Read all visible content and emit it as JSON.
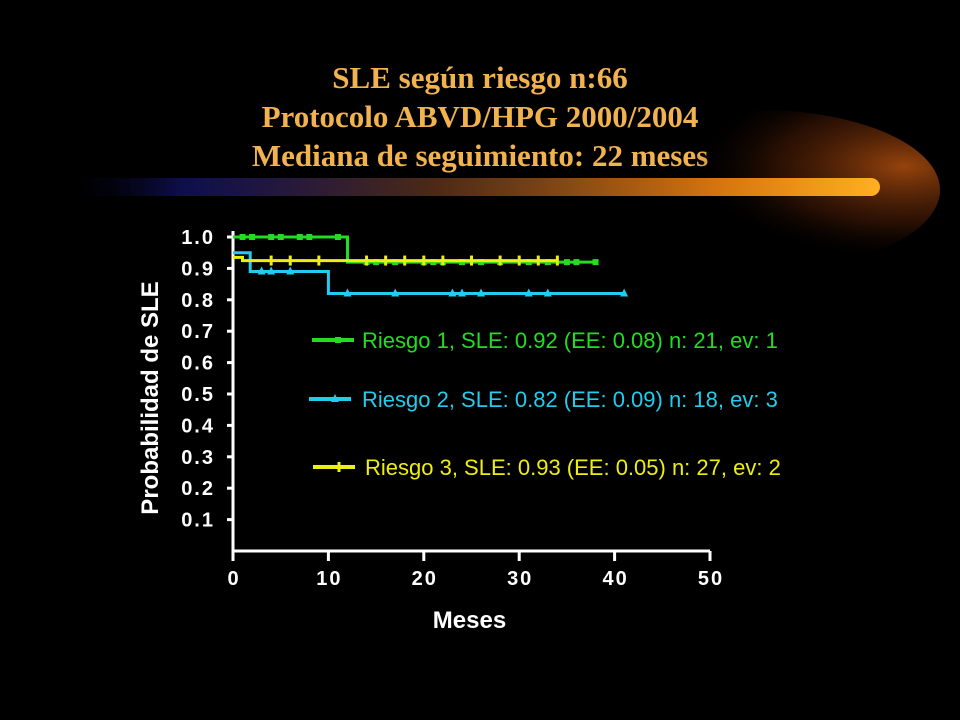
{
  "slide": {
    "title_lines": [
      "SLE según riesgo n:66",
      "Protocolo ABVD/HPG 2000/2004",
      "Mediana de seguimiento: 22 meses"
    ]
  },
  "colors": {
    "background": "#000000",
    "title": "#f2b24e",
    "axes": "#ffffff",
    "riesgo1": "#22dd22",
    "riesgo2": "#22ccee",
    "riesgo3": "#eeee11"
  },
  "chart_data": {
    "type": "line",
    "subtype": "kaplan-meier step",
    "xlabel": "Meses",
    "ylabel": "Probabilidad de SLE",
    "xlim": [
      0,
      50
    ],
    "ylim": [
      0,
      1.0
    ],
    "xticks": [
      0,
      10,
      20,
      30,
      40,
      50
    ],
    "xtick_labels": [
      "0",
      "10",
      "20",
      "30",
      "40",
      "50"
    ],
    "yticks": [
      1.0,
      0.9,
      0.8,
      0.7,
      0.6,
      0.5,
      0.4,
      0.3,
      0.2,
      0.1
    ],
    "ytick_labels": [
      "1.0",
      "0.9",
      "0.8",
      "0.7",
      "0.6",
      "0.5",
      "0.4",
      "0.3",
      "0.2",
      "0.1"
    ],
    "grid": false,
    "legend_position": "right, inside plot",
    "series": [
      {
        "name": "Riesgo 1, SLE: 0.92 (EE: 0.08) n: 21, ev: 1",
        "color": "#22dd22",
        "marker": "square",
        "steps": [
          [
            0,
            1.0
          ],
          [
            12,
            1.0
          ],
          [
            12,
            0.92
          ],
          [
            38,
            0.92
          ]
        ],
        "censored": [
          1,
          2,
          4,
          5,
          7,
          8,
          11,
          14,
          15,
          17,
          20,
          21,
          22,
          24,
          26,
          28,
          31,
          33,
          35,
          36,
          38
        ]
      },
      {
        "name": "Riesgo 2, SLE: 0.82 (EE: 0.09) n: 18, ev: 3",
        "color": "#22ccee",
        "marker": "triangle",
        "steps": [
          [
            0,
            0.95
          ],
          [
            1.8,
            0.95
          ],
          [
            1.8,
            0.89
          ],
          [
            10,
            0.89
          ],
          [
            10,
            0.82
          ],
          [
            41,
            0.82
          ]
        ],
        "censored": [
          3,
          4,
          6,
          12,
          17,
          23,
          24,
          26,
          31,
          33,
          41
        ]
      },
      {
        "name": "Riesgo 3, SLE: 0.93 (EE: 0.05) n: 27, ev: 2",
        "color": "#eeee11",
        "marker": "tick",
        "steps": [
          [
            0,
            0.935
          ],
          [
            1,
            0.935
          ],
          [
            1,
            0.925
          ],
          [
            34,
            0.925
          ]
        ],
        "censored": [
          4,
          6,
          9,
          14,
          16,
          18,
          20,
          22,
          25,
          28,
          30,
          32,
          34
        ]
      }
    ]
  }
}
